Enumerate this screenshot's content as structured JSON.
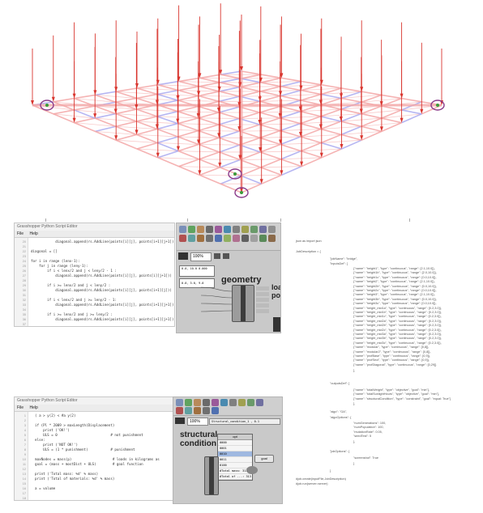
{
  "top_editor": {
    "title": "Grasshopper Python Script Editor",
    "menu": [
      "File",
      "Help"
    ],
    "line_numbers": [
      "20",
      "21",
      "22",
      "23",
      "24",
      "25",
      "26",
      "27",
      "28",
      "29",
      "30",
      "31",
      "32",
      "33",
      "34",
      "35",
      "36",
      "37",
      "38",
      "39"
    ],
    "lines": [
      "            diagonal.append(rs.AddLine(points[i][j], points[i+1][j+1]))",
      "",
      "diagonal = []",
      "",
      "for i in range (lenx-1):",
      "    for j in range (leny-1):",
      "        if i < lenx/2 and j < leny/2 - 1 :",
      "            diagonal.append(rs.AddLine(points[i][j], points[i][j+1]))",
      "",
      "        if i >= lenx/2 and j < leny/2 :",
      "            diagonal.append(rs.AddLine(points[i][j], points[i+1][j]))",
      "",
      "        if i < lenx/2 and j >= leny/2 - 1:",
      "            diagonal.append(rs.AddLine(points[i][j], points[i+1][j+1]))",
      "",
      "        if i >= lenx/2 and j >= leny/2 :",
      "            diagonal.append(rs.AddLine(points[i][j], points[i+1][j+1]))",
      "",
      "support = points[0][0], points[0][-1], points[-1][0], points[-1][-1]",
      ""
    ]
  },
  "bottom_editor": {
    "title": "Grasshopper Python Script Editor",
    "menu": [
      "File",
      "Help"
    ],
    "line_numbers": [
      "1",
      "2",
      "3",
      "4",
      "5",
      "6",
      "7",
      "8",
      "9",
      "10",
      "11",
      "12",
      "13",
      "14",
      "15",
      "16",
      "17",
      "18"
    ],
    "lines": [
      "  ( a > y(2) < #a y(2)",
      "",
      "  if (Pl * 2009 > maxLength(Displacement)",
      "      print ('OK!')",
      "      ULS = 0                          # not punishment",
      "  else:",
      "      print ('NOT OK!')",
      "      ULS = (1 * punishment)           # punishment",
      "",
      "  maxNodes = mass(p)                    # loads in kilograms as",
      "  goal = (mass + mostDist + ULS)        # goal function",
      "",
      "  print ('Total mass: %d' % mass)",
      "  print ('Total of materials: %d' % mass)",
      "",
      "  a = volume",
      "",
      ""
    ]
  },
  "gh_top": {
    "zoom": "100%",
    "component_label": "geometry",
    "side_label": "load\npoints",
    "panel_text": "0.0, 10.0 0.000",
    "panel_text2": "0.0, 3.0, 9.0"
  },
  "gh_bottom": {
    "zoom": "100%",
    "header_field": "Structural_condition_1 , 0.1",
    "component_label": "structural\ncondition",
    "menu_title": "opt",
    "menu_items": [
      "0000",
      "0001",
      "0010",
      "0011",
      "0100",
      "#Total mass: 313",
      "#Total of ...: 313"
    ],
    "small_button": "goal"
  },
  "json_panel": {
    "header_1": "json as import json",
    "header_2": "JobDescription = {",
    "key_title": "\"jobName\": \"bridge\",",
    "key_inputs": "\"inputsDef\": [",
    "inputs": [
      "{\"name\": \"height1\", \"type\": \"continuous\", \"range\": [2.1,10.0]},",
      "{\"name\": \"height1b\", \"type\": \"continuous\", \"range\": [2.0,10.0]},",
      "{\"name\": \"height1c\", \"type\": \"continuous\", \"range\": [0.0,10.0]},",
      "{\"name\": \"height2\", \"type\": \"continuous\", \"range\": [2.1,10.0]},",
      "{\"name\": \"height2b\", \"type\": \"continuous\", \"range\": [0.0,10.0]},",
      "{\"name\": \"height2c\", \"type\": \"continuous\", \"range\": [0.0,10.0]},",
      "{\"name\": \"height3\", \"type\": \"continuous\", \"range\": [2.1,10.0]},",
      "{\"name\": \"height3b\", \"type\": \"continuous\", \"range\": [0.0,10.0]},",
      "{\"name\": \"height3c\", \"type\": \"continuous\", \"range\": [0.0,10.0]},",
      "{\"name\": \"height_mid1a\", \"type\": \"continuous\", \"range\": [0.2,3.0]},",
      "{\"name\": \"height_mid1b\", \"type\": \"continuous\", \"range\": [0.2,3.0]},",
      "{\"name\": \"height_mid1c\", \"type\": \"continuous\", \"range\": [0.2,3.0]},",
      "{\"name\": \"height_mid2a\", \"type\": \"continuous\", \"range\": [0.2,3.0]},",
      "{\"name\": \"height_mid2b\", \"type\": \"continuous\", \"range\": [0.2,3.0]},",
      "{\"name\": \"height_mid2c\", \"type\": \"continuous\", \"range\": [0.2,3.0]},",
      "{\"name\": \"height_mid3a\", \"type\": \"continuous\", \"range\": [0.2,3.0]},",
      "{\"name\": \"height_mid3b\", \"type\": \"continuous\", \"range\": [0.2,3.0]},",
      "{\"name\": \"height_mid3c\", \"type\": \"continuous\", \"range\": [0.2,3.0]},",
      "{\"name\": \"modular\", \"type\": \"continuous\", \"range\": [0,8]},",
      "{\"name\": \"modular2\", \"type\": \"continuous\", \"range\": [0,8]},",
      "{\"name\": \"profBase\", \"type\": \"continuous\", \"range\": [0,9]},",
      "{\"name\": \"profSect\", \"type\": \"continuous\", \"range\": [0,9]},",
      "{\"name\": \"profDiagonal\", \"type\": \"continuous\", \"range\": [0,29]}"
    ],
    "inputs_close": "],",
    "key_outputs": "\"outputsDef\": [",
    "outputs": [
      "{\"name\": \"totalWeight\", \"type\": \"objective\", \"goal\": \"min\"},",
      "{\"name\": \"totalSunlightHours\", \"type\": \"objective\", \"goal\": \"min\"},",
      "{\"name\": \"structuralCondition\", \"type\": \"constraint\", \"goal\": \"equal: True\"}"
    ],
    "outputs_close": "],",
    "key_algo": "\"algo\": \"GA\",",
    "key_algo_opts": "\"algoOptions\": {",
    "algo_opts": [
      "\"numGenerations\": 100,",
      "\"numPopulation\": 100,",
      "\"mutationRate\": 0.05,",
      "\"seedTest\": 5"
    ],
    "algo_close": "},",
    "key_job_opts": "\"jobOptions\": {",
    "job_opts": [
      "\"screenshot\": True"
    ],
    "job_close": "}",
    "end": "}",
    "footer_1": "#job.create(inputFile,JobDescription)",
    "footer_2": "#job.run(server=server)"
  },
  "colors": {
    "load_arrow": "#d9362f",
    "tension_member": "#f3a6a6",
    "compression_member": "#a9a9f0",
    "support_marker": "#8a3a8a"
  }
}
